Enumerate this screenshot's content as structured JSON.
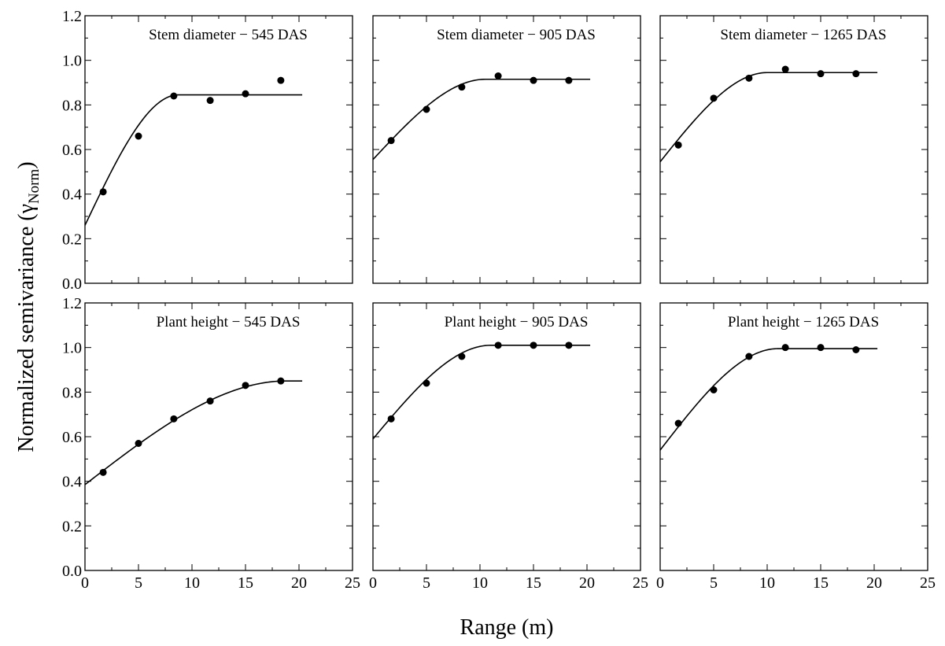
{
  "figure": {
    "ylabel_main": "Normalized semivariance (",
    "ylabel_symbol": "γ",
    "ylabel_sub": "Norm",
    "ylabel_close": ")",
    "xlabel": "Range (m)"
  },
  "chart_data": [
    {
      "type": "scatter",
      "title": "Stem diameter − 545 DAS",
      "xlim": [
        0,
        25
      ],
      "ylim": [
        0,
        1.2
      ],
      "xticks": [
        0,
        5,
        10,
        15,
        20,
        25
      ],
      "xtick_labels": [
        "0",
        "5",
        "10",
        "15",
        "20",
        "25"
      ],
      "yticks": [
        0,
        0.2,
        0.4,
        0.6,
        0.8,
        1.0,
        1.2
      ],
      "ytick_labels": [
        "0.0",
        "0.2",
        "0.4",
        "0.6",
        "0.8",
        "1.0",
        "1.2"
      ],
      "points": {
        "x": [
          1.7,
          5.0,
          8.3,
          11.7,
          15.0,
          18.3
        ],
        "y": [
          0.41,
          0.66,
          0.84,
          0.82,
          0.85,
          0.91
        ]
      },
      "fit": {
        "model": "spherical",
        "nugget": 0.26,
        "sill": 0.845,
        "range": 8.7,
        "x_max": 20.3
      }
    },
    {
      "type": "scatter",
      "title": "Stem diameter − 905 DAS",
      "xlim": [
        0,
        25
      ],
      "ylim": [
        0,
        1.2
      ],
      "xticks": [
        0,
        5,
        10,
        15,
        20,
        25
      ],
      "xtick_labels": [
        "0",
        "5",
        "10",
        "15",
        "20",
        "25"
      ],
      "yticks": [
        0,
        0.2,
        0.4,
        0.6,
        0.8,
        1.0,
        1.2
      ],
      "ytick_labels": [],
      "points": {
        "x": [
          1.7,
          5.0,
          8.3,
          11.7,
          15.0,
          18.3
        ],
        "y": [
          0.64,
          0.78,
          0.88,
          0.93,
          0.91,
          0.91
        ]
      },
      "fit": {
        "model": "spherical",
        "nugget": 0.555,
        "sill": 0.915,
        "range": 10.5,
        "x_max": 20.3
      }
    },
    {
      "type": "scatter",
      "title": "Stem diameter − 1265 DAS",
      "xlim": [
        0,
        25
      ],
      "ylim": [
        0,
        1.2
      ],
      "xticks": [
        0,
        5,
        10,
        15,
        20,
        25
      ],
      "xtick_labels": [
        "0",
        "5",
        "10",
        "15",
        "20",
        "25"
      ],
      "yticks": [
        0,
        0.2,
        0.4,
        0.6,
        0.8,
        1.0,
        1.2
      ],
      "ytick_labels": [],
      "points": {
        "x": [
          1.7,
          5.0,
          8.3,
          11.7,
          15.0,
          18.3
        ],
        "y": [
          0.62,
          0.83,
          0.92,
          0.96,
          0.94,
          0.94
        ]
      },
      "fit": {
        "model": "spherical",
        "nugget": 0.545,
        "sill": 0.945,
        "range": 10.0,
        "x_max": 20.3
      }
    },
    {
      "type": "scatter",
      "title": "Plant height − 545 DAS",
      "xlim": [
        0,
        25
      ],
      "ylim": [
        0,
        1.2
      ],
      "xticks": [
        0,
        5,
        10,
        15,
        20,
        25
      ],
      "xtick_labels": [
        "0",
        "5",
        "10",
        "15",
        "20",
        "25"
      ],
      "yticks": [
        0,
        0.2,
        0.4,
        0.6,
        0.8,
        1.0,
        1.2
      ],
      "ytick_labels": [
        "0.0",
        "0.2",
        "0.4",
        "0.6",
        "0.8",
        "1.0",
        "1.2"
      ],
      "points": {
        "x": [
          1.7,
          5.0,
          8.3,
          11.7,
          15.0,
          18.3
        ],
        "y": [
          0.44,
          0.57,
          0.68,
          0.76,
          0.83,
          0.85
        ]
      },
      "fit": {
        "model": "spherical",
        "nugget": 0.385,
        "sill": 0.85,
        "range": 18.8,
        "x_max": 20.3
      }
    },
    {
      "type": "scatter",
      "title": "Plant height − 905 DAS",
      "xlim": [
        0,
        25
      ],
      "ylim": [
        0,
        1.2
      ],
      "xticks": [
        0,
        5,
        10,
        15,
        20,
        25
      ],
      "xtick_labels": [
        "0",
        "5",
        "10",
        "15",
        "20",
        "25"
      ],
      "yticks": [
        0,
        0.2,
        0.4,
        0.6,
        0.8,
        1.0,
        1.2
      ],
      "ytick_labels": [],
      "points": {
        "x": [
          1.7,
          5.0,
          8.3,
          11.7,
          15.0,
          18.3
        ],
        "y": [
          0.68,
          0.84,
          0.96,
          1.01,
          1.01,
          1.01
        ]
      },
      "fit": {
        "model": "spherical",
        "nugget": 0.59,
        "sill": 1.01,
        "range": 11.0,
        "x_max": 20.3
      }
    },
    {
      "type": "scatter",
      "title": "Plant height − 1265 DAS",
      "xlim": [
        0,
        25
      ],
      "ylim": [
        0,
        1.2
      ],
      "xticks": [
        0,
        5,
        10,
        15,
        20,
        25
      ],
      "xtick_labels": [
        "0",
        "5",
        "10",
        "15",
        "20",
        "25"
      ],
      "yticks": [
        0,
        0.2,
        0.4,
        0.6,
        0.8,
        1.0,
        1.2
      ],
      "ytick_labels": [],
      "points": {
        "x": [
          1.7,
          5.0,
          8.3,
          11.7,
          15.0,
          18.3
        ],
        "y": [
          0.66,
          0.81,
          0.96,
          1.0,
          1.0,
          0.99
        ]
      },
      "fit": {
        "model": "spherical",
        "nugget": 0.54,
        "sill": 0.995,
        "range": 11.0,
        "x_max": 20.3
      }
    }
  ]
}
